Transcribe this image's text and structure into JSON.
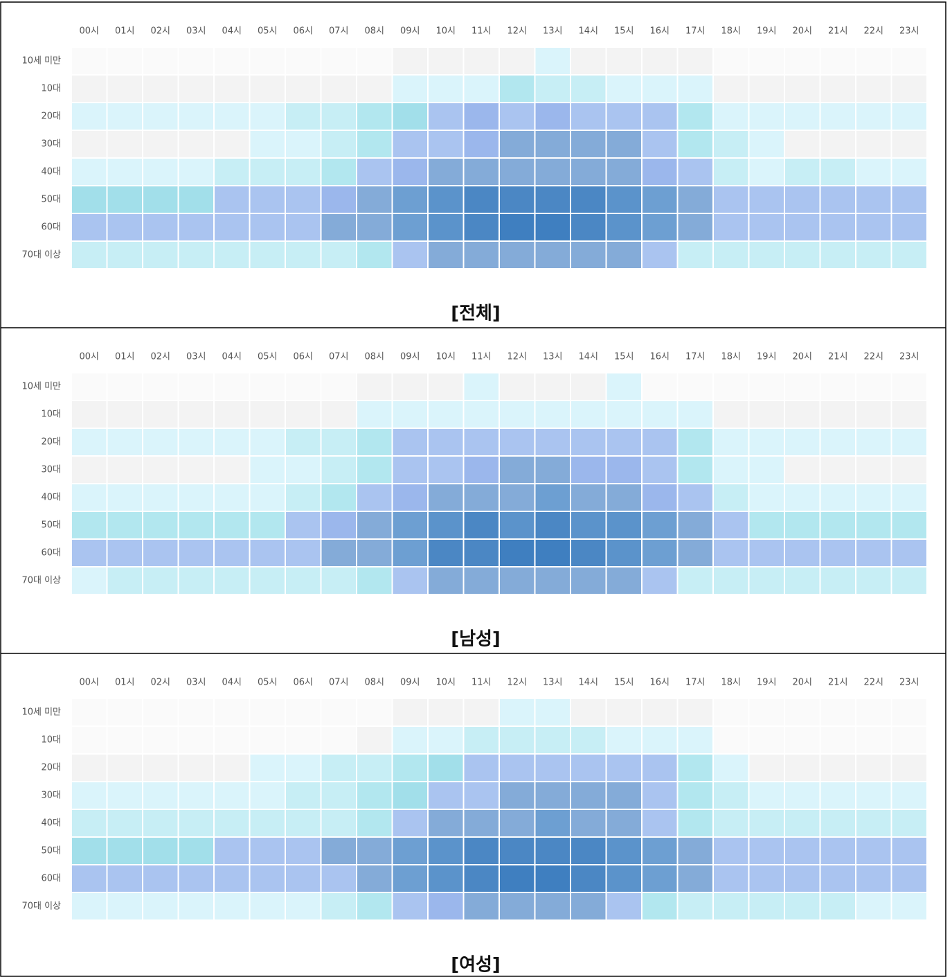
{
  "chart_data": [
    {
      "type": "heatmap",
      "title": "[전체]",
      "x": [
        "00시",
        "01시",
        "02시",
        "03시",
        "04시",
        "05시",
        "06시",
        "07시",
        "08시",
        "09시",
        "10시",
        "11시",
        "12시",
        "13시",
        "14시",
        "15시",
        "16시",
        "17시",
        "18시",
        "19시",
        "20시",
        "21시",
        "22시",
        "23시"
      ],
      "y": [
        "10세 미만",
        "10대",
        "20대",
        "30대",
        "40대",
        "50대",
        "60대",
        "70대 이상"
      ],
      "colors": [
        "#fafafa",
        "#f3f3f3",
        "#daf4fb",
        "#c7eef5",
        "#b2e7ef",
        "#a2dfea",
        "#aac4f0",
        "#9bb7ec",
        "#84abd8",
        "#6d9fd2",
        "#5b93cb",
        "#4b87c4",
        "#3f7fc0"
      ],
      "values": [
        [
          0,
          0,
          0,
          0,
          0,
          0,
          0,
          0,
          0,
          1,
          1,
          1,
          1,
          2,
          1,
          1,
          1,
          1,
          0,
          0,
          0,
          0,
          0,
          0
        ],
        [
          1,
          1,
          1,
          1,
          1,
          1,
          1,
          1,
          1,
          2,
          2,
          2,
          4,
          3,
          3,
          2,
          2,
          2,
          1,
          1,
          1,
          1,
          1,
          1
        ],
        [
          2,
          2,
          2,
          2,
          2,
          2,
          3,
          3,
          4,
          5,
          6,
          7,
          6,
          7,
          6,
          6,
          6,
          4,
          2,
          2,
          2,
          2,
          2,
          2
        ],
        [
          1,
          1,
          1,
          1,
          1,
          2,
          2,
          3,
          4,
          6,
          6,
          7,
          8,
          8,
          8,
          8,
          6,
          4,
          3,
          2,
          1,
          1,
          1,
          1
        ],
        [
          2,
          2,
          2,
          2,
          3,
          3,
          3,
          4,
          6,
          7,
          8,
          8,
          8,
          8,
          8,
          8,
          7,
          6,
          3,
          2,
          3,
          3,
          2,
          2
        ],
        [
          5,
          5,
          5,
          5,
          6,
          6,
          6,
          7,
          8,
          9,
          10,
          11,
          11,
          11,
          11,
          10,
          9,
          8,
          6,
          6,
          6,
          6,
          6,
          6
        ],
        [
          6,
          6,
          6,
          6,
          6,
          6,
          6,
          8,
          8,
          9,
          10,
          11,
          12,
          12,
          11,
          10,
          9,
          8,
          6,
          6,
          6,
          6,
          6,
          6
        ],
        [
          3,
          3,
          3,
          3,
          3,
          3,
          3,
          3,
          4,
          6,
          8,
          8,
          8,
          8,
          8,
          8,
          6,
          3,
          3,
          3,
          3,
          3,
          3,
          3
        ]
      ]
    },
    {
      "type": "heatmap",
      "title": "[남성]",
      "x": [
        "00시",
        "01시",
        "02시",
        "03시",
        "04시",
        "05시",
        "06시",
        "07시",
        "08시",
        "09시",
        "10시",
        "11시",
        "12시",
        "13시",
        "14시",
        "15시",
        "16시",
        "17시",
        "18시",
        "19시",
        "20시",
        "21시",
        "22시",
        "23시"
      ],
      "y": [
        "10세 미만",
        "10대",
        "20대",
        "30대",
        "40대",
        "50대",
        "60대",
        "70대 이상"
      ],
      "colors": [
        "#fafafa",
        "#f3f3f3",
        "#daf4fb",
        "#c7eef5",
        "#b2e7ef",
        "#a2dfea",
        "#aac4f0",
        "#9bb7ec",
        "#84abd8",
        "#6d9fd2",
        "#5b93cb",
        "#4b87c4",
        "#3f7fc0"
      ],
      "values": [
        [
          0,
          0,
          0,
          0,
          0,
          0,
          0,
          0,
          1,
          1,
          1,
          2,
          1,
          1,
          1,
          2,
          0,
          0,
          0,
          0,
          0,
          0,
          0,
          0
        ],
        [
          1,
          1,
          1,
          1,
          1,
          1,
          1,
          1,
          2,
          2,
          2,
          2,
          2,
          2,
          2,
          2,
          2,
          2,
          1,
          1,
          1,
          1,
          1,
          1
        ],
        [
          2,
          2,
          2,
          2,
          2,
          2,
          3,
          3,
          4,
          6,
          6,
          6,
          6,
          6,
          6,
          6,
          6,
          4,
          2,
          2,
          2,
          2,
          2,
          2
        ],
        [
          1,
          1,
          1,
          1,
          1,
          2,
          2,
          3,
          4,
          6,
          6,
          7,
          8,
          8,
          7,
          7,
          6,
          4,
          2,
          2,
          1,
          1,
          1,
          1
        ],
        [
          2,
          2,
          2,
          2,
          2,
          2,
          3,
          4,
          6,
          7,
          8,
          8,
          8,
          9,
          8,
          8,
          7,
          6,
          3,
          2,
          2,
          2,
          2,
          2
        ],
        [
          4,
          4,
          4,
          4,
          4,
          4,
          6,
          7,
          8,
          9,
          10,
          11,
          10,
          11,
          10,
          10,
          9,
          8,
          6,
          4,
          4,
          4,
          4,
          4
        ],
        [
          6,
          6,
          6,
          6,
          6,
          6,
          6,
          8,
          8,
          9,
          11,
          11,
          12,
          12,
          11,
          10,
          9,
          8,
          6,
          6,
          6,
          6,
          6,
          6
        ],
        [
          2,
          3,
          3,
          3,
          3,
          3,
          3,
          3,
          4,
          6,
          8,
          8,
          8,
          8,
          8,
          8,
          6,
          3,
          3,
          3,
          3,
          3,
          3,
          3
        ]
      ]
    },
    {
      "type": "heatmap",
      "title": "[여성]",
      "x": [
        "00시",
        "01시",
        "02시",
        "03시",
        "04시",
        "05시",
        "06시",
        "07시",
        "08시",
        "09시",
        "10시",
        "11시",
        "12시",
        "13시",
        "14시",
        "15시",
        "16시",
        "17시",
        "18시",
        "19시",
        "20시",
        "21시",
        "22시",
        "23시"
      ],
      "y": [
        "10세 미만",
        "10대",
        "20대",
        "30대",
        "40대",
        "50대",
        "60대",
        "70대 이상"
      ],
      "colors": [
        "#fafafa",
        "#f3f3f3",
        "#daf4fb",
        "#c7eef5",
        "#b2e7ef",
        "#a2dfea",
        "#aac4f0",
        "#9bb7ec",
        "#84abd8",
        "#6d9fd2",
        "#5b93cb",
        "#4b87c4",
        "#3f7fc0"
      ],
      "values": [
        [
          0,
          0,
          0,
          0,
          0,
          0,
          0,
          0,
          0,
          1,
          1,
          1,
          2,
          2,
          1,
          1,
          1,
          1,
          0,
          0,
          0,
          0,
          0,
          0
        ],
        [
          0,
          0,
          0,
          0,
          0,
          0,
          0,
          0,
          1,
          2,
          2,
          3,
          3,
          3,
          3,
          2,
          2,
          2,
          0,
          0,
          0,
          0,
          0,
          0
        ],
        [
          1,
          1,
          1,
          1,
          1,
          2,
          2,
          3,
          3,
          4,
          5,
          6,
          6,
          6,
          6,
          6,
          6,
          4,
          2,
          1,
          1,
          1,
          1,
          1
        ],
        [
          2,
          2,
          2,
          2,
          2,
          2,
          3,
          3,
          4,
          5,
          6,
          6,
          8,
          8,
          8,
          8,
          6,
          4,
          3,
          2,
          2,
          2,
          2,
          2
        ],
        [
          3,
          3,
          3,
          3,
          3,
          3,
          3,
          3,
          4,
          6,
          8,
          8,
          8,
          9,
          8,
          8,
          6,
          4,
          3,
          3,
          3,
          3,
          3,
          3
        ],
        [
          5,
          5,
          5,
          5,
          6,
          6,
          6,
          8,
          8,
          9,
          10,
          11,
          11,
          11,
          11,
          10,
          9,
          8,
          6,
          6,
          6,
          6,
          6,
          6
        ],
        [
          6,
          6,
          6,
          6,
          6,
          6,
          6,
          6,
          8,
          9,
          10,
          11,
          12,
          12,
          11,
          10,
          9,
          8,
          6,
          6,
          6,
          6,
          6,
          6
        ],
        [
          2,
          2,
          2,
          2,
          2,
          2,
          2,
          3,
          4,
          6,
          7,
          8,
          8,
          8,
          8,
          6,
          4,
          3,
          3,
          3,
          3,
          3,
          2,
          2
        ]
      ]
    }
  ]
}
